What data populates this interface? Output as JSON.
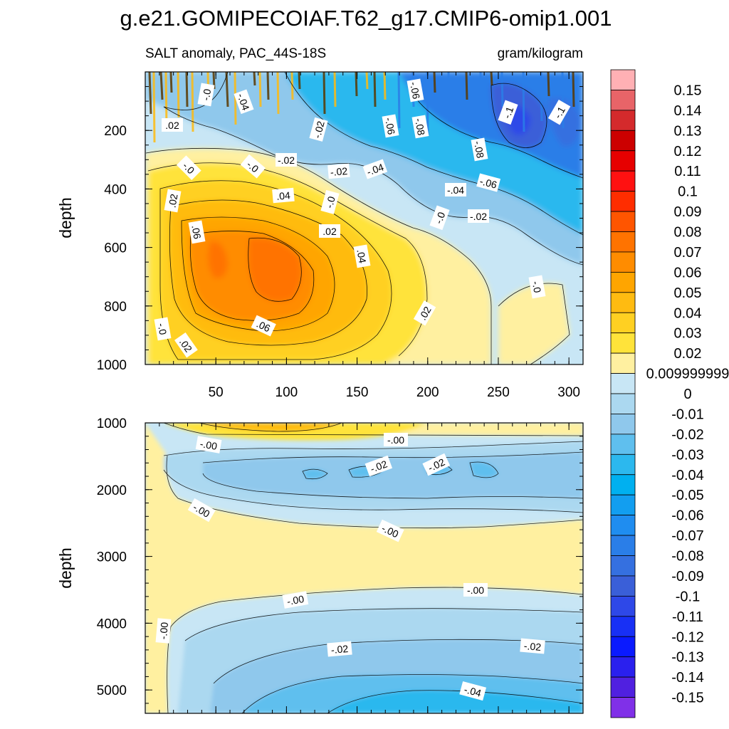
{
  "title": "g.e21.GOMIPECOIAF.T62_g17.CMIP6-omip1.001",
  "chart_data": {
    "type": "heatmap",
    "subtitle_left": "SALT anomaly, PAC_44S-18S",
    "subtitle_right": "gram/kilogram",
    "colorbar": {
      "levels": [
        "0.15",
        "0.14",
        "0.13",
        "0.12",
        "0.11",
        "0.1",
        "0.09",
        "0.08",
        "0.07",
        "0.06",
        "0.05",
        "0.04",
        "0.03",
        "0.02",
        "0.009999999",
        "0",
        "-0.01",
        "-0.02",
        "-0.03",
        "-0.04",
        "-0.05",
        "-0.06",
        "-0.07",
        "-0.08",
        "-0.09",
        "-0.1",
        "-0.11",
        "-0.12",
        "-0.13",
        "-0.14",
        "-0.15"
      ],
      "colors": [
        "#ffb0b4",
        "#e86468",
        "#d42a2c",
        "#cc0000",
        "#e60000",
        "#ff1111",
        "#ff2d00",
        "#ff5500",
        "#ff7300",
        "#ff8c00",
        "#ffa500",
        "#ffbb11",
        "#ffd022",
        "#ffe33a",
        "#fff0a0",
        "#c8e6f5",
        "#abd8f0",
        "#8fc8ec",
        "#5fbfee",
        "#2cb8ee",
        "#00b0f0",
        "#129ef0",
        "#1f8df0",
        "#2a7ee8",
        "#3570e0",
        "#3a5fd8",
        "#2e48e8",
        "#1830f5",
        "#0a1aff",
        "#2a20ee",
        "#5020e0",
        "#8030e8"
      ]
    },
    "panels": [
      {
        "ylabel": "depth",
        "ylim": [
          1000,
          0
        ],
        "xlim": [
          0,
          310
        ],
        "x_ticks": [
          "50",
          "100",
          "150",
          "200",
          "250",
          "300"
        ],
        "y_ticks": [
          "200",
          "400",
          "600",
          "800",
          "1000"
        ],
        "contour_labels": [
          ".06",
          ".02",
          ".02",
          ".06",
          ".04",
          ".02",
          ".04",
          ".02",
          ".02",
          "-.0",
          "-.0",
          "-.02",
          "-.02",
          "-.04",
          "-.06",
          "-.08",
          "-.1",
          "-.1",
          "-.0",
          "-.04",
          "-.02",
          "-.04",
          "-.06",
          "-.0",
          "-.02",
          "-.08",
          "-.06",
          "-.0",
          "-.0",
          "-.0"
        ]
      },
      {
        "ylabel": "depth",
        "ylim": [
          5350,
          1000
        ],
        "xlim": [
          0,
          310
        ],
        "y_ticks": [
          "1000",
          "2000",
          "3000",
          "4000",
          "5000"
        ],
        "contour_labels": [
          "-.00",
          "-.00",
          "-.00",
          "-.00",
          "-.00",
          "-.00",
          "-.00",
          "-.02",
          "-.02",
          "-.02",
          "-.02",
          "-.04"
        ]
      }
    ]
  }
}
